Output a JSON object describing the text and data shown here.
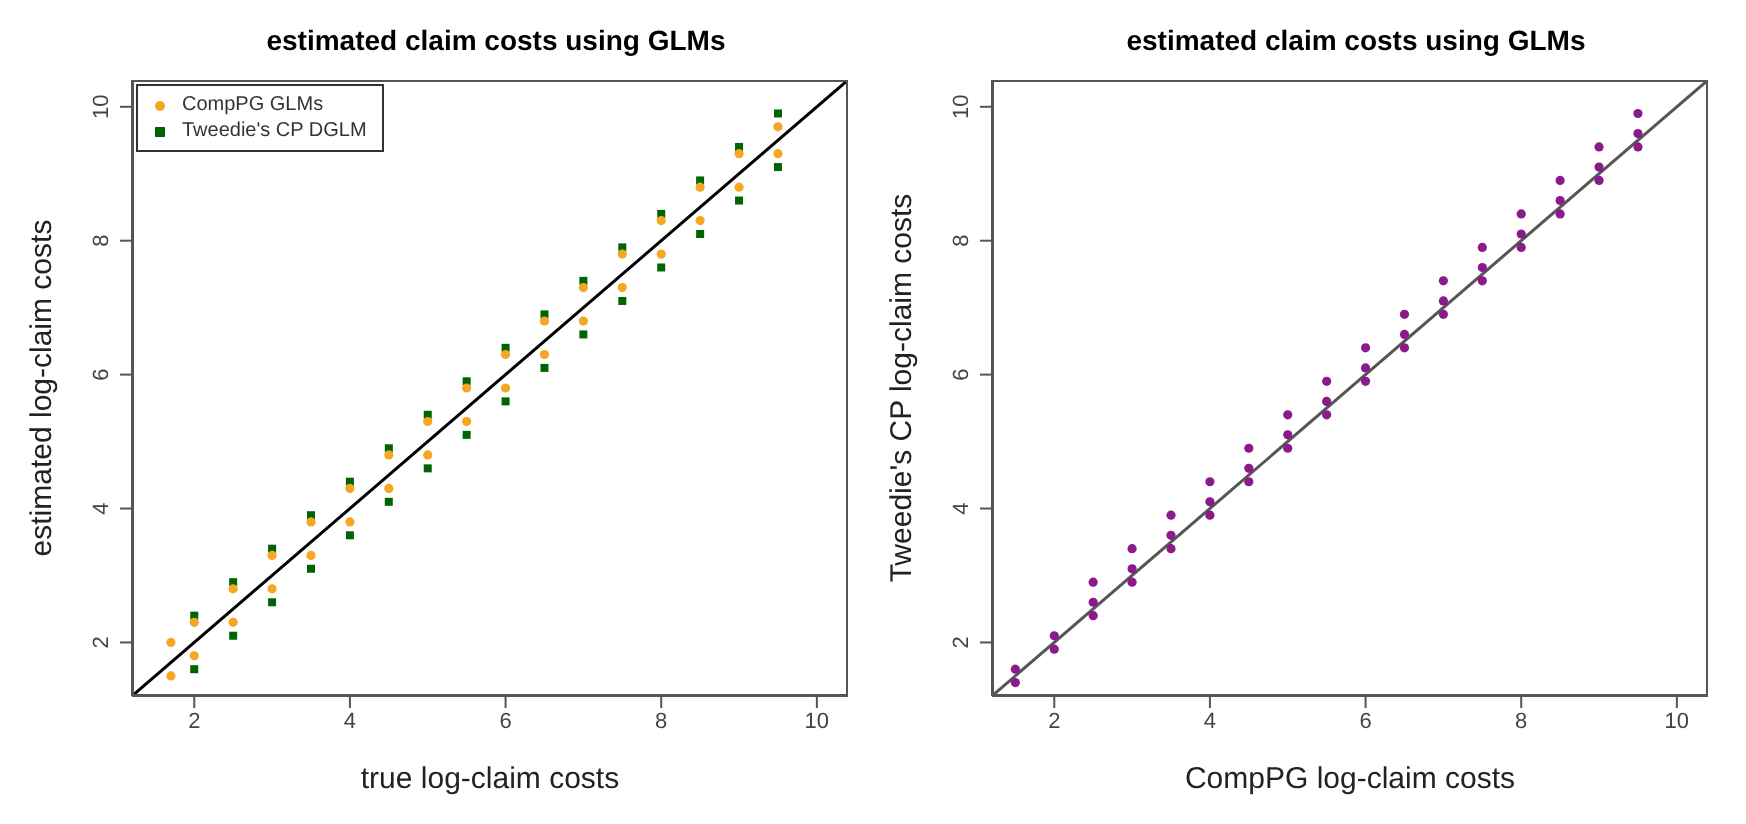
{
  "chart_data": [
    {
      "type": "scatter",
      "title": "estimated claim costs using GLMs",
      "xlabel": "true log-claim costs",
      "ylabel": "estimated log-claim costs",
      "xlim": [
        1.2,
        10.4
      ],
      "ylim": [
        1.2,
        10.4
      ],
      "xticks": [
        2,
        4,
        6,
        8,
        10
      ],
      "yticks": [
        2,
        4,
        6,
        8,
        10
      ],
      "grid": false,
      "legend": "top left",
      "series": [
        {
          "name": "Tweedie's CP DGLM",
          "color": "#006400",
          "marker": "square",
          "x": [
            2,
            2.5,
            3,
            3.5,
            4,
            4.5,
            5,
            5.5,
            6,
            6.5,
            7,
            7.5,
            8,
            8.5,
            9,
            9.5,
            2,
            2.5,
            3,
            3.5,
            4,
            4.5,
            5,
            5.5,
            6,
            6.5,
            7,
            7.5,
            8,
            8.5,
            9,
            9.5
          ],
          "values": [
            2.4,
            2.9,
            3.4,
            3.9,
            4.4,
            4.9,
            5.4,
            5.9,
            6.4,
            6.9,
            7.4,
            7.9,
            8.4,
            8.9,
            9.4,
            9.9,
            1.6,
            2.1,
            2.6,
            3.1,
            3.6,
            4.1,
            4.6,
            5.1,
            5.6,
            6.1,
            6.6,
            7.1,
            7.6,
            8.1,
            8.6,
            9.1
          ]
        },
        {
          "name": "CompPG GLMs",
          "color": "#f5a623",
          "marker": "circle",
          "x": [
            1.7,
            2,
            2.5,
            3,
            3.5,
            4,
            4.5,
            5,
            5.5,
            6,
            6.5,
            7,
            7.5,
            8,
            8.5,
            9,
            9.5,
            1.7,
            2,
            2.5,
            3,
            3.5,
            4,
            4.5,
            5,
            5.5,
            6,
            6.5,
            7,
            7.5,
            8,
            8.5,
            9,
            9.5
          ],
          "values": [
            2.0,
            2.3,
            2.8,
            3.3,
            3.8,
            4.3,
            4.8,
            5.3,
            5.8,
            6.3,
            6.8,
            7.3,
            7.8,
            8.3,
            8.8,
            9.3,
            9.7,
            1.5,
            1.8,
            2.3,
            2.8,
            3.3,
            3.8,
            4.3,
            4.8,
            5.3,
            5.8,
            6.3,
            6.8,
            7.3,
            7.8,
            8.3,
            8.8,
            9.3
          ]
        },
        {
          "type": "line",
          "color": "#000000",
          "marker": "none",
          "x": [
            1.2,
            10.4
          ],
          "values": [
            1.2,
            10.4
          ]
        }
      ]
    },
    {
      "type": "scatter",
      "title": "estimated claim costs using GLMs",
      "xlabel": "CompPG log-claim costs",
      "ylabel": "Tweedie's CP log-claim costs",
      "xlim": [
        1.2,
        10.4
      ],
      "ylim": [
        1.2,
        10.4
      ],
      "xticks": [
        2,
        4,
        6,
        8,
        10
      ],
      "yticks": [
        2,
        4,
        6,
        8,
        10
      ],
      "grid": false,
      "series": [
        {
          "color": "#8b1a8b",
          "marker": "circle",
          "x": [
            1.5,
            2,
            2.5,
            3,
            3.5,
            4,
            4.5,
            5,
            5.5,
            6,
            6.5,
            7,
            7.5,
            8,
            8.5,
            9,
            9.5,
            1.5,
            2,
            2.5,
            3,
            3.5,
            4,
            4.5,
            5,
            5.5,
            6,
            6.5,
            7,
            7.5,
            8,
            8.5,
            9,
            9.5,
            2.5,
            3,
            3.5,
            4,
            4.5,
            5,
            5.5,
            6,
            6.5,
            7,
            7.5,
            8,
            8.5,
            9,
            9.5
          ],
          "values": [
            1.6,
            2.1,
            2.6,
            3.1,
            3.6,
            4.1,
            4.6,
            5.1,
            5.6,
            6.1,
            6.6,
            7.1,
            7.6,
            8.1,
            8.6,
            9.1,
            9.6,
            1.4,
            1.9,
            2.4,
            2.9,
            3.4,
            3.9,
            4.4,
            4.9,
            5.4,
            5.9,
            6.4,
            6.9,
            7.4,
            7.9,
            8.4,
            8.9,
            9.4,
            2.9,
            3.4,
            3.9,
            4.4,
            4.9,
            5.4,
            5.9,
            6.4,
            6.9,
            7.4,
            7.9,
            8.4,
            8.9,
            9.4,
            9.9
          ]
        },
        {
          "type": "line",
          "color": "#555555",
          "marker": "none",
          "x": [
            1.2,
            10.4
          ],
          "values": [
            1.2,
            10.4
          ]
        }
      ]
    }
  ]
}
